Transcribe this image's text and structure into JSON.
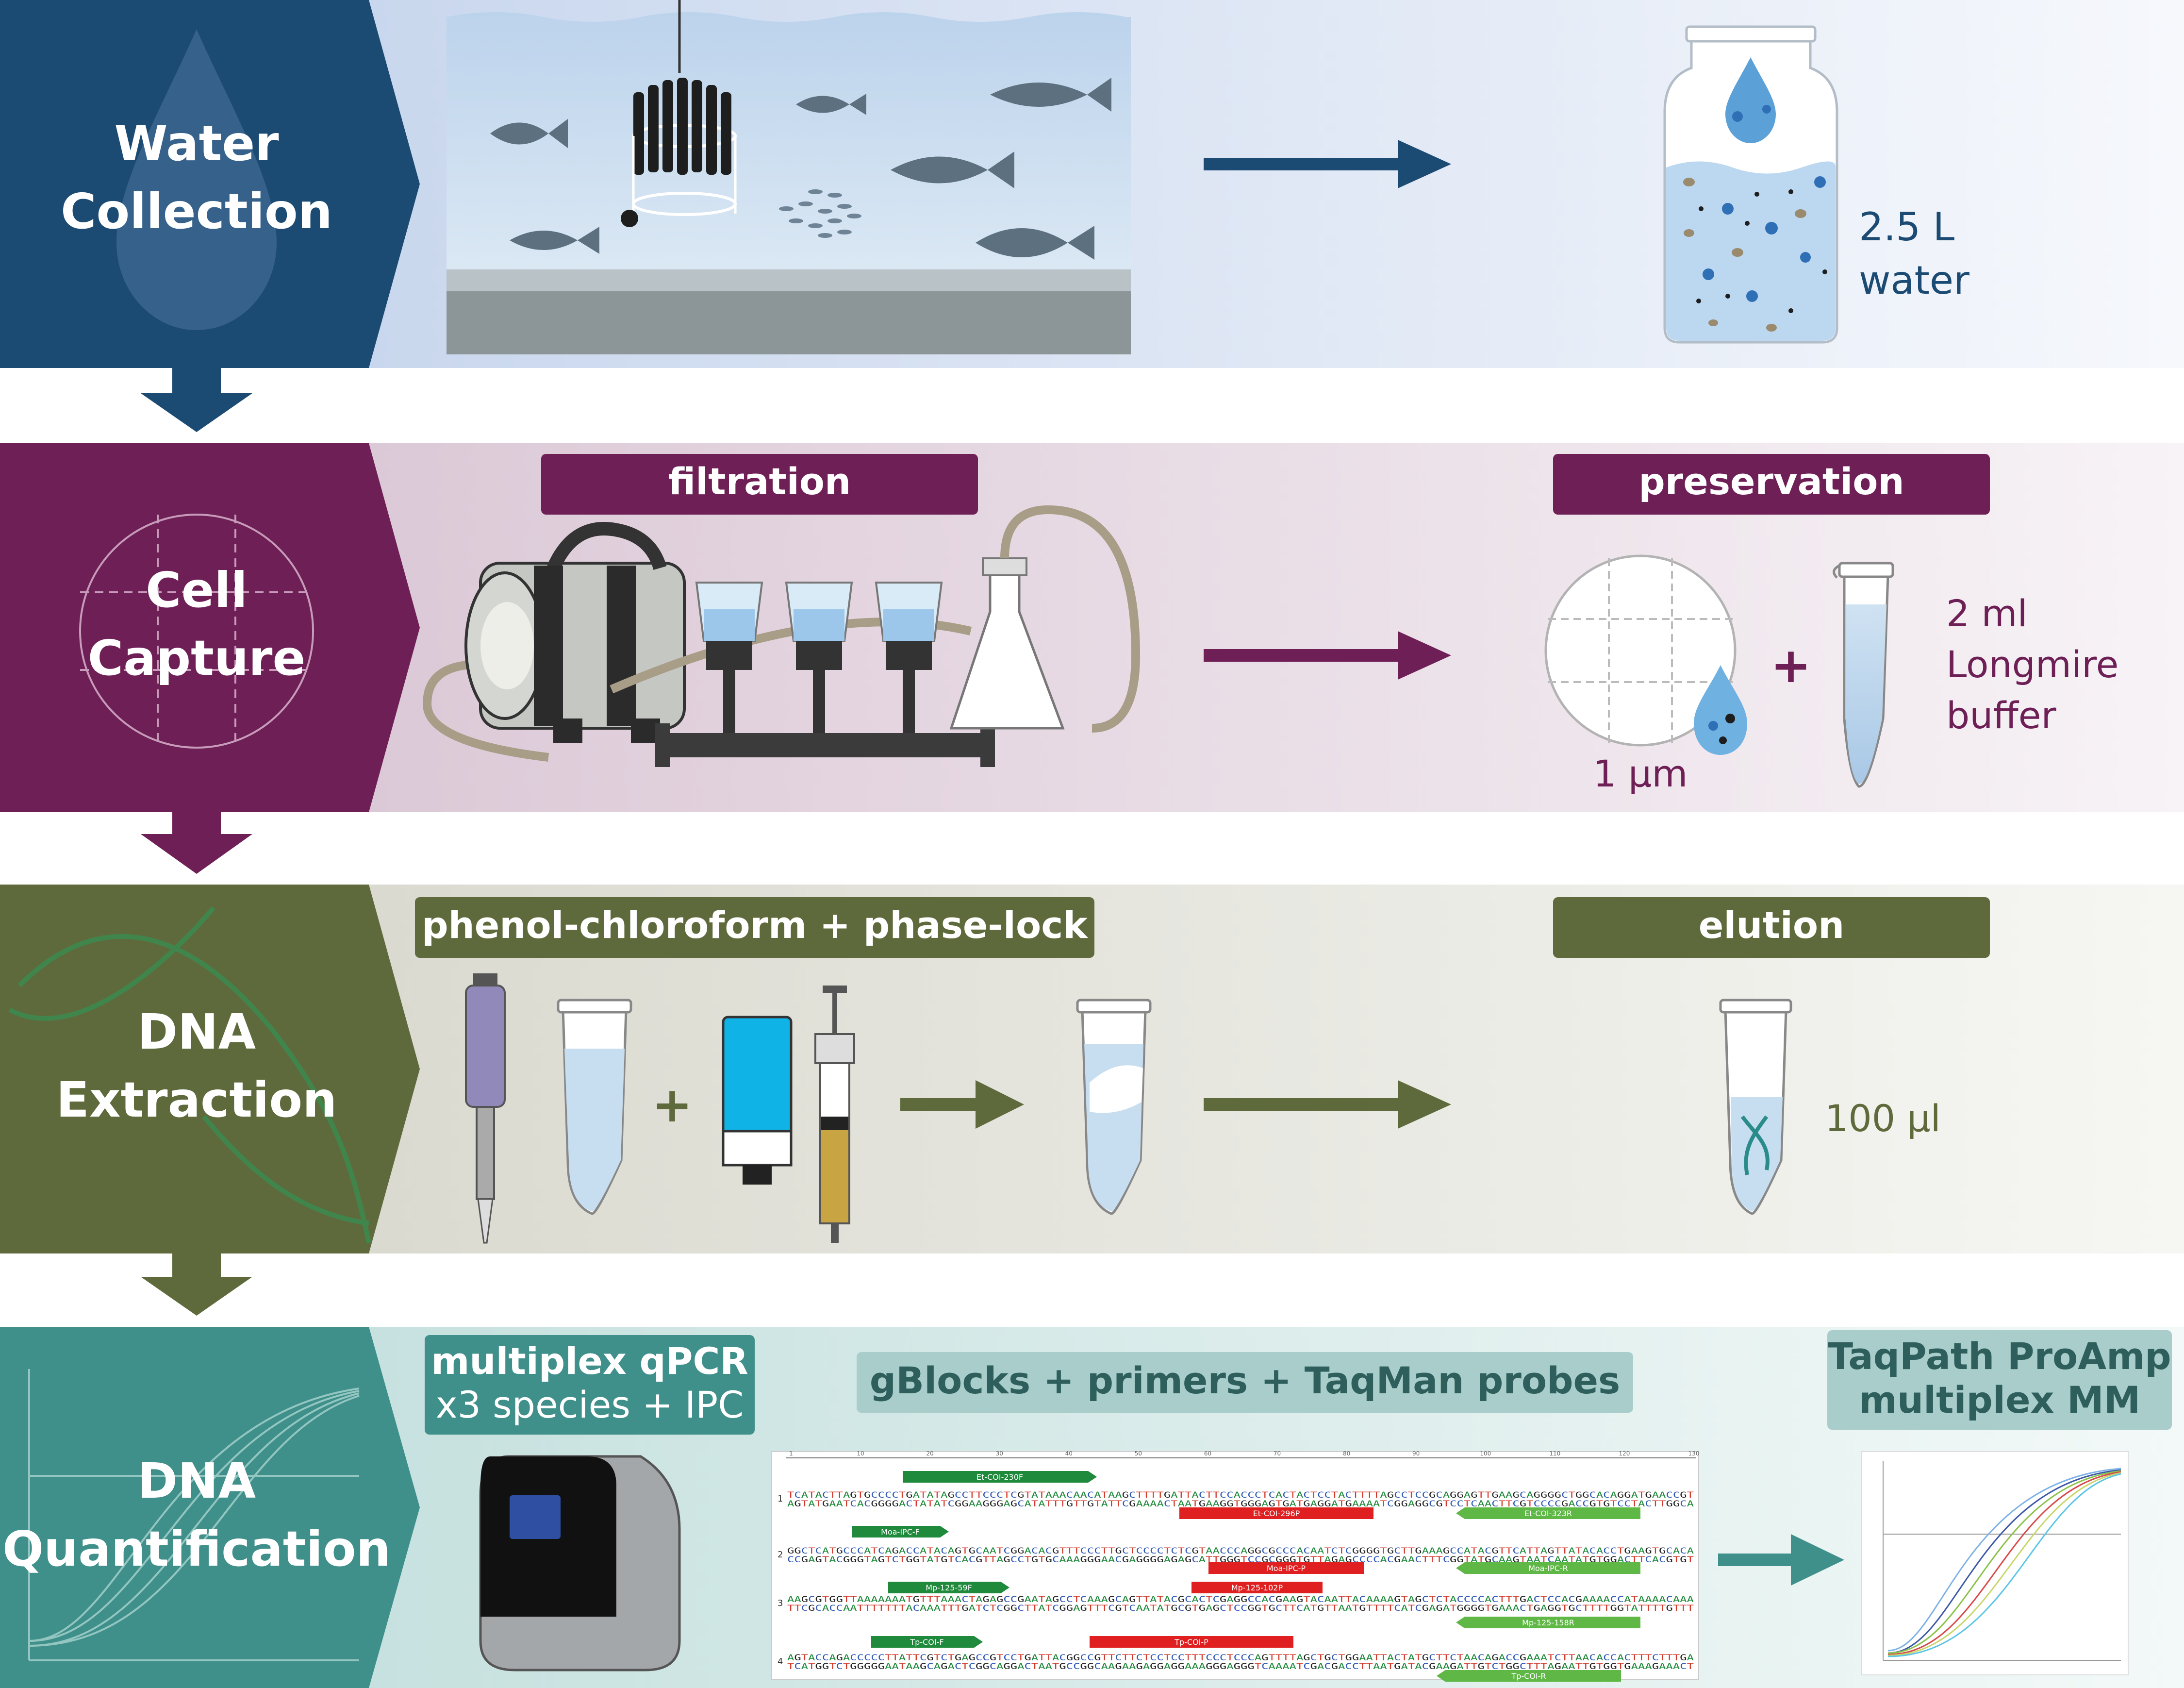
{
  "colors": {
    "water": "#1b4a73",
    "capture": "#6e1f56",
    "extraction": "#5f6a3c",
    "quant": "#3f8f8a",
    "bg_water": "#e4ebf6",
    "bg_capture": "#ede1ea",
    "bg_extraction": "#e7e7e0",
    "bg_quant": "#dfeeed"
  },
  "stages": {
    "water": {
      "title_1": "Water",
      "title_2": "Collection",
      "volume_1": "2.5 L",
      "volume_2": "water"
    },
    "capture": {
      "title_1": "Cell",
      "title_2": "Capture",
      "filtration_label": "filtration",
      "preservation_label": "preservation",
      "pore_size": "1 µm",
      "plus": "+",
      "buffer_1": "2 ml",
      "buffer_2": "Longmire",
      "buffer_3": "buffer"
    },
    "extraction": {
      "title_1": "DNA",
      "title_2": "Extraction",
      "method_label": "phenol-chloroform  +  phase-lock",
      "elution_label": "elution",
      "plus": "+",
      "elution_volume": "100 µl"
    },
    "quant": {
      "title_1": "DNA",
      "title_2": "Quantification",
      "qpcr_label_1": "multiplex qPCR",
      "qpcr_label_2": "x3 species + IPC",
      "reagents_label": "gBlocks  +  primers  +  TaqMan probes",
      "mastermix_1": "TaqPath ProAmp",
      "mastermix_2": "multiplex MM",
      "sequence_rows": [
        {
          "num": "1",
          "top": "TCATACTTAGTGCCCCTGATATAGCCTTCCCTCGTATAAACAACATAAGCTTTTGATTACTTCCACCCTCACTACTCCTACTTTTAGCCTCCGCAGGAGTTGAAGCAGGGGCTGGCACAGGATGAACCGT",
          "bottom": "AGTATGAATCACGGGGACTATATCGGAAGGGAGCATATTTGTTGTATTCGAAAACTAATGAAGGTGGGAGTGATGAGGATGAAAATCGGAGGCGTCCTCAACTTCGTCCCCGACCGTGTCCTACTTGGCA"
        },
        {
          "num": "2",
          "top": "GGCTCATGCCCATCAGACCATACAGTGCAATCGGACACGTTTCCCTTGCTCCCCTCTCGTAACCCAGGCGCCCACAATCTCGGGGTGCTTGAAAGCCATACGTTCATTAGTTATACACCTGAAGTGCACA",
          "bottom": "CCGAGTACGGGTAGTCTGGTATGTCACGTTAGCCTGTGCAAAGGGAACGAGGGGAGAGCATTGGGTCCGCGGGTGTTAGAGCCCCACGAACTTTCGGTATGCAAGTAATCAATATGTGGACTTCACGTGT"
        },
        {
          "num": "3",
          "top": "AAGCGTGGTTAAAAAAATGTTTAAACTAGAGCCGAATAGCCTCAAAGCAGTTATACGCACTCGAGGCCACGAAGTACAATTACAAAAGTAGCTCTACCCCACTTTGACTCCACGAAAACCATAAAACAAA",
          "bottom": "TTCGCACCAATTTTTTTACAAATTTGATCTCGGCTTATCGGAGTTTCGTCAATATGCGTGAGCTCCGGTGCTTCATGTTAATGTTTTCATCGAGATGGGGTGAAACTGAGGTGCTTTTGGTATTTTGTTT"
        },
        {
          "num": "4",
          "top": "AGTACCAGACCCCCTTATTCGTCTGAGCCGTCCTGATTACGGCCGTTCTTCTCCTCCTTTCCCTCCCAGTTTTAGCTGCTGGAATTACTATGCTTCTAACAGACCGAAATCTTAACACCACTTTCTTTGA",
          "bottom": "TCATGGTCTGGGGGAATAAGCAGACTCGGCAGGACTAATGCCGGCAAGAAGAGGAGGAAAGGGAGGGTCAAAATCGACGACCTTAATGATACGAAGATTGTCTGGCTTTAGAATTGTGGTGAAAGAAACT"
        }
      ],
      "ruler_ticks": [
        "1",
        "10",
        "20",
        "30",
        "40",
        "50",
        "60",
        "70",
        "80",
        "90",
        "100",
        "110",
        "120",
        "130"
      ],
      "annotations": [
        {
          "name": "Et-COI-230F",
          "kind": "primer"
        },
        {
          "name": "Et-COI-296P",
          "kind": "probe"
        },
        {
          "name": "Et-COI-323R",
          "kind": "primer-rev"
        },
        {
          "name": "Moa-IPC-F",
          "kind": "primer"
        },
        {
          "name": "Moa-IPC-P",
          "kind": "probe"
        },
        {
          "name": "Moa-IPC-R",
          "kind": "primer-rev"
        },
        {
          "name": "Mp-125-59F",
          "kind": "primer"
        },
        {
          "name": "Mp-125-102P",
          "kind": "probe"
        },
        {
          "name": "Mp-125-158R",
          "kind": "primer-rev"
        },
        {
          "name": "Tp-COI-F",
          "kind": "primer"
        },
        {
          "name": "Tp-COI-P",
          "kind": "probe"
        },
        {
          "name": "Tp-COI-R",
          "kind": "primer-rev"
        }
      ]
    }
  }
}
